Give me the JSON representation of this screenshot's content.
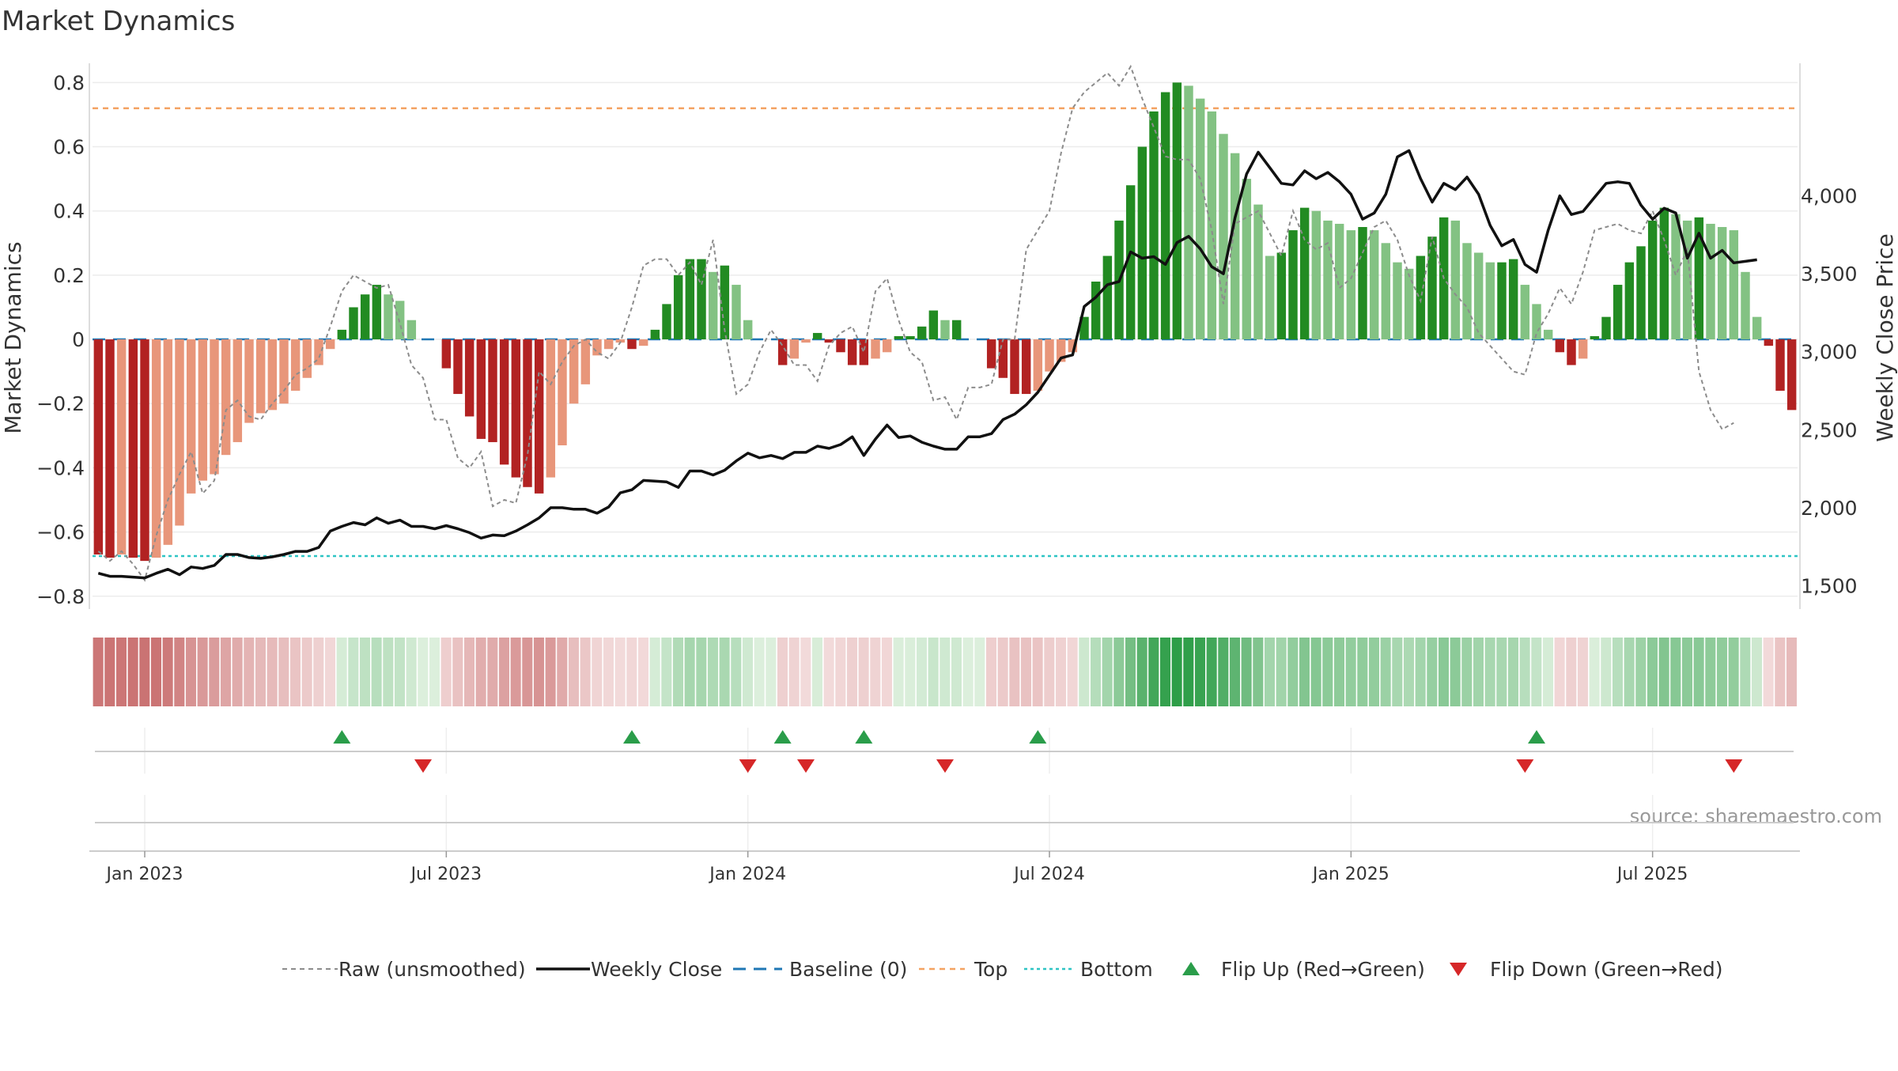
{
  "chart_data": {
    "type": "bar",
    "title": "Market Dynamics",
    "ylabel": "Market Dynamics",
    "y2label": "Weekly Close Price",
    "source": "source: sharemaestro.com",
    "ylim": [
      -0.84,
      0.86
    ],
    "y2lim": [
      1350,
      4850
    ],
    "yticks": [
      {
        "v": 0.8,
        "label": "0.8"
      },
      {
        "v": 0.6,
        "label": "0.6"
      },
      {
        "v": 0.4,
        "label": "0.4"
      },
      {
        "v": 0.2,
        "label": "0.2"
      },
      {
        "v": 0,
        "label": "0"
      },
      {
        "v": -0.2,
        "label": "−0.2"
      },
      {
        "v": -0.4,
        "label": "−0.4"
      },
      {
        "v": -0.6,
        "label": "−0.6"
      },
      {
        "v": -0.8,
        "label": "−0.8"
      }
    ],
    "y2ticks": [
      {
        "v": 1500,
        "label": "1,500"
      },
      {
        "v": 2000,
        "label": "2,000"
      },
      {
        "v": 2500,
        "label": "2,500"
      },
      {
        "v": 3000,
        "label": "3,000"
      },
      {
        "v": 3500,
        "label": "3,500"
      },
      {
        "v": 4000,
        "label": "4,000"
      }
    ],
    "xticks": [
      {
        "week": 4,
        "label": "Jan 2023"
      },
      {
        "week": 30,
        "label": "Jul 2023"
      },
      {
        "week": 56,
        "label": "Jan 2024"
      },
      {
        "week": 82,
        "label": "Jul 2024"
      },
      {
        "week": 108,
        "label": "Jan 2025"
      },
      {
        "week": 134,
        "label": "Jul 2025"
      }
    ],
    "top_threshold": 0.72,
    "bottom_threshold": -0.675,
    "baseline": 0,
    "dynamics": [
      -0.67,
      -0.68,
      -0.67,
      -0.68,
      -0.69,
      -0.68,
      -0.64,
      -0.58,
      -0.48,
      -0.44,
      -0.42,
      -0.36,
      -0.32,
      -0.26,
      -0.23,
      -0.22,
      -0.2,
      -0.16,
      -0.12,
      -0.08,
      -0.03,
      0.03,
      0.1,
      0.14,
      0.17,
      0.14,
      0.12,
      0.06,
      0,
      0,
      -0.09,
      -0.17,
      -0.24,
      -0.31,
      -0.32,
      -0.39,
      -0.43,
      -0.46,
      -0.48,
      -0.43,
      -0.33,
      -0.2,
      -0.14,
      -0.05,
      -0.03,
      -0.01,
      -0.03,
      -0.02,
      0.03,
      0.11,
      0.2,
      0.25,
      0.25,
      0.21,
      0.23,
      0.17,
      0.06,
      0,
      0,
      -0.08,
      -0.06,
      -0.01,
      0.02,
      -0.01,
      -0.04,
      -0.08,
      -0.08,
      -0.06,
      -0.04,
      0.01,
      0.01,
      0.04,
      0.09,
      0.06,
      0.06,
      0,
      0,
      -0.09,
      -0.12,
      -0.17,
      -0.17,
      -0.16,
      -0.1,
      -0.07,
      -0.04,
      0.07,
      0.18,
      0.26,
      0.37,
      0.48,
      0.6,
      0.71,
      0.77,
      0.8,
      0.79,
      0.75,
      0.71,
      0.64,
      0.58,
      0.5,
      0.42,
      0.26,
      0.27,
      0.34,
      0.41,
      0.4,
      0.37,
      0.36,
      0.34,
      0.35,
      0.34,
      0.3,
      0.24,
      0.22,
      0.26,
      0.32,
      0.38,
      0.37,
      0.3,
      0.27,
      0.24,
      0.24,
      0.25,
      0.17,
      0.11,
      0.03,
      -0.04,
      -0.08,
      -0.06,
      0.01,
      0.07,
      0.17,
      0.24,
      0.29,
      0.37,
      0.41,
      0.39,
      0.37,
      0.38,
      0.36,
      0.35,
      0.34,
      0.21,
      0.07,
      -0.02,
      -0.16,
      -0.22
    ],
    "raw": [
      -0.66,
      -0.69,
      -0.66,
      -0.7,
      -0.75,
      -0.61,
      -0.5,
      -0.42,
      -0.35,
      -0.48,
      -0.44,
      -0.22,
      -0.19,
      -0.24,
      -0.25,
      -0.2,
      -0.16,
      -0.11,
      -0.09,
      -0.06,
      0.04,
      0.15,
      0.2,
      0.18,
      0.16,
      0.17,
      0.05,
      -0.08,
      -0.12,
      -0.25,
      -0.25,
      -0.37,
      -0.4,
      -0.35,
      -0.52,
      -0.5,
      -0.51,
      -0.36,
      -0.1,
      -0.14,
      -0.07,
      -0.02,
      0,
      -0.04,
      -0.06,
      -0.01,
      0.1,
      0.23,
      0.25,
      0.25,
      0.2,
      0.24,
      0.17,
      0.31,
      0.03,
      -0.17,
      -0.14,
      -0.04,
      0.03,
      -0.02,
      -0.08,
      -0.08,
      -0.13,
      -0.02,
      0.02,
      0.04,
      -0.04,
      0.15,
      0.19,
      0.06,
      -0.04,
      -0.07,
      -0.19,
      -0.18,
      -0.25,
      -0.15,
      -0.15,
      -0.14,
      0,
      0,
      0.28,
      0.34,
      0.4,
      0.58,
      0.72,
      0.77,
      0.8,
      0.83,
      0.79,
      0.85,
      0.75,
      0.66,
      0.57,
      0.56,
      0.56,
      0.5,
      0.34,
      0.11,
      0.36,
      0.38,
      0.4,
      0.33,
      0.26,
      0.4,
      0.31,
      0.28,
      0.3,
      0.16,
      0.19,
      0.27,
      0.35,
      0.37,
      0.31,
      0.2,
      0.12,
      0.32,
      0.19,
      0.14,
      0.1,
      0.02,
      -0.02,
      -0.06,
      -0.1,
      -0.11,
      0.02,
      0.08,
      0.16,
      0.11,
      0.21,
      0.34,
      0.35,
      0.36,
      0.34,
      0.33,
      0.4,
      0.31,
      0.2,
      0.28,
      -0.1,
      -0.22,
      -0.28,
      -0.26
    ],
    "close": [
      1580,
      1560,
      1560,
      1555,
      1550,
      1580,
      1605,
      1570,
      1620,
      1610,
      1630,
      1700,
      1700,
      1680,
      1675,
      1685,
      1700,
      1720,
      1720,
      1745,
      1850,
      1880,
      1905,
      1890,
      1935,
      1900,
      1920,
      1880,
      1880,
      1865,
      1885,
      1865,
      1840,
      1805,
      1825,
      1820,
      1850,
      1890,
      1935,
      2000,
      2000,
      1990,
      1990,
      1965,
      2005,
      2095,
      2115,
      2175,
      2170,
      2165,
      2130,
      2235,
      2235,
      2210,
      2240,
      2300,
      2350,
      2320,
      2335,
      2315,
      2355,
      2355,
      2395,
      2380,
      2405,
      2455,
      2335,
      2440,
      2530,
      2450,
      2460,
      2420,
      2395,
      2375,
      2375,
      2455,
      2455,
      2475,
      2565,
      2600,
      2660,
      2740,
      2850,
      2960,
      2980,
      3290,
      3350,
      3430,
      3450,
      3640,
      3600,
      3610,
      3560,
      3700,
      3740,
      3660,
      3545,
      3500,
      3860,
      4140,
      4280,
      4180,
      4080,
      4070,
      4160,
      4110,
      4150,
      4090,
      4010,
      3850,
      3890,
      4010,
      4250,
      4290,
      4110,
      3960,
      4080,
      4040,
      4120,
      4010,
      3810,
      3680,
      3720,
      3560,
      3510,
      3780,
      4000,
      3880,
      3900,
      3990,
      4080,
      4090,
      4080,
      3940,
      3850,
      3920,
      3890,
      3600,
      3760,
      3600,
      3650,
      3570,
      3580,
      3590
    ],
    "flip_up_weeks": [
      21,
      46,
      59,
      66,
      81,
      124
    ],
    "flip_down_weeks": [
      28,
      56,
      61,
      73,
      123,
      141
    ],
    "legend": [
      "Raw (unsmoothed)",
      "Weekly Close",
      "Baseline (0)",
      "Top",
      "Bottom",
      "Flip Up (Red→Green)",
      "Flip Down (Green→Red)"
    ],
    "legend_placement": "bottom-center",
    "grid": true,
    "colors": {
      "pos_strong": "#228B22",
      "pos_weak": "#83C283",
      "neg_strong": "#B22222",
      "neg_weak": "#E8967A",
      "raw": "#8c8c8c",
      "close": "#111111",
      "baseline": "#1F77B4",
      "top": "#F4A261",
      "bottom": "#2EC4C4",
      "flip_up": "#2A9D4A",
      "flip_down": "#D62728"
    }
  }
}
